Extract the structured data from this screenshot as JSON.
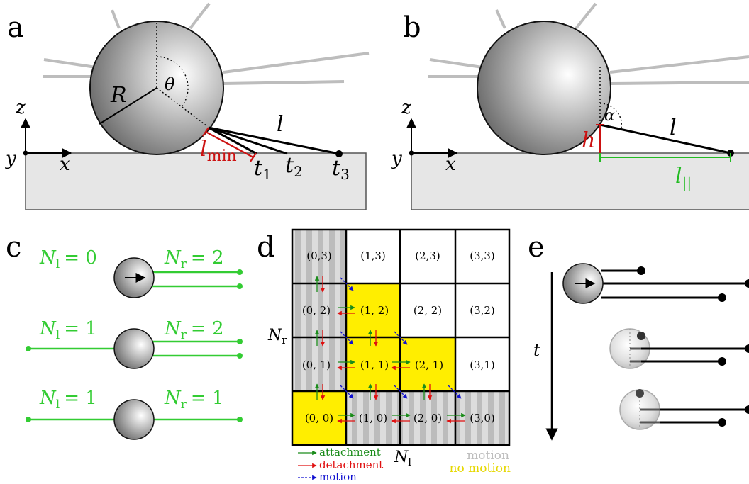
{
  "panels": {
    "a": {
      "label": "a",
      "radius": "R",
      "angle": "θ",
      "length": "l",
      "lmin_base": "l",
      "lmin_sub": "min",
      "times": [
        {
          "base": "t",
          "sub": "1"
        },
        {
          "base": "t",
          "sub": "2"
        },
        {
          "base": "t",
          "sub": "3"
        }
      ],
      "axes": {
        "z": "z",
        "y": "y",
        "x": "x"
      }
    },
    "b": {
      "label": "b",
      "angle": "α",
      "length": "l",
      "height": "h",
      "lpar_base": "l",
      "lpar_sub": "||",
      "axes": {
        "z": "z",
        "y": "y",
        "x": "x"
      }
    },
    "c": {
      "label": "c",
      "rows": [
        {
          "left": {
            "base": "N",
            "sub": "l",
            "value": "= 0"
          },
          "right": {
            "base": "N",
            "sub": "r",
            "value": "= 2"
          }
        },
        {
          "left": {
            "base": "N",
            "sub": "l",
            "value": "= 1"
          },
          "right": {
            "base": "N",
            "sub": "r",
            "value": "= 2"
          }
        },
        {
          "left": {
            "base": "N",
            "sub": "l",
            "value": "= 1"
          },
          "right": {
            "base": "N",
            "sub": "r",
            "value": "= 1"
          }
        }
      ]
    },
    "d": {
      "label": "d",
      "y_axis": {
        "base": "N",
        "sub": "r"
      },
      "x_axis": {
        "base": "N",
        "sub": "l"
      },
      "rows": [
        [
          "(0,3)",
          "(1,3)",
          "(2,3)",
          "(3,3)"
        ],
        [
          "(0, 2)",
          "(1, 2)",
          "(2, 2)",
          "(3,2)"
        ],
        [
          "(0, 1)",
          "(1, 1)",
          "(2, 1)",
          "(3,1)"
        ],
        [
          "(0, 0)",
          "(1, 0)",
          "(2, 0)",
          "(3,0)"
        ]
      ],
      "legend": {
        "attachment": "attachment",
        "detachment": "detachment",
        "motion": "motion",
        "motion_region": "motion",
        "no_motion_region": "no motion"
      },
      "colors": {
        "attachment": "#1a8c1a",
        "detachment": "#e01010",
        "motion": "#1010d0",
        "no_motion": "#ffee00",
        "motion_region": "#c8c8c8"
      }
    },
    "e": {
      "label": "e",
      "time": "t"
    }
  },
  "colors": {
    "tether_green": "#33cc33",
    "lmin_red": "#cc1111",
    "lpar_green": "#22bb22",
    "surface": "#e6e6e6"
  }
}
